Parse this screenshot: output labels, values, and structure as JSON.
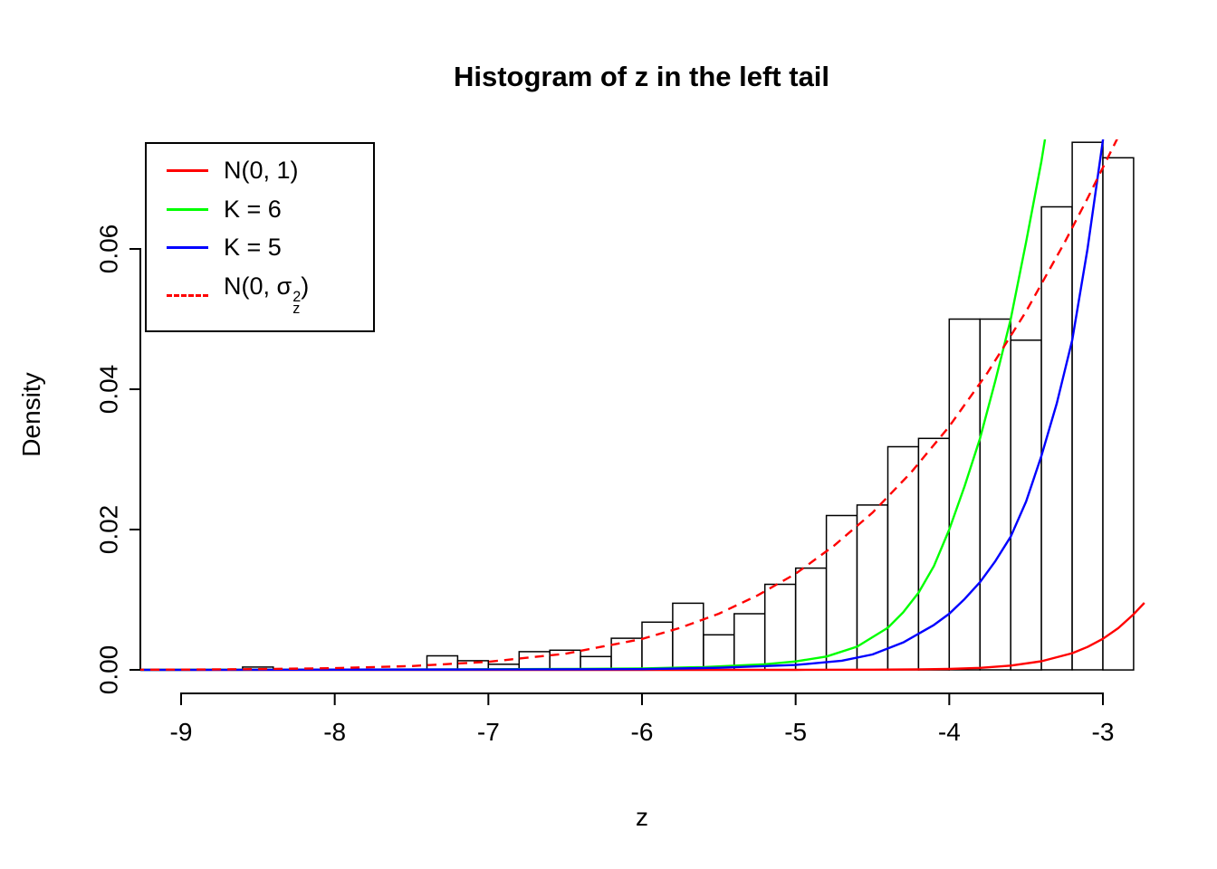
{
  "chart_data": {
    "type": "bar",
    "subtype": "histogram-with-density-curves",
    "title": "Histogram of z in the left tail",
    "xlabel": "z",
    "ylabel": "Density",
    "xlim": [
      -9.3,
      -2.73
    ],
    "ylim": [
      0,
      0.0755
    ],
    "grid": "off",
    "legend_position": "top-left",
    "x_ticks": [
      "-9",
      "-8",
      "-7",
      "-6",
      "-5",
      "-4",
      "-3"
    ],
    "x_tick_values": [
      -9,
      -8,
      -7,
      -6,
      -5,
      -4,
      -3
    ],
    "y_ticks": [
      "0.00",
      "0.02",
      "0.04",
      "0.06"
    ],
    "y_tick_values": [
      0,
      0.02,
      0.04,
      0.06
    ],
    "histogram": {
      "bin_start": -8.6,
      "bin_width": 0.2,
      "bar_fill": "#FFFFFF",
      "bar_stroke": "#000000",
      "densities": [
        0.0004,
        0,
        0,
        0,
        0,
        0,
        0.002,
        0.0013,
        0.0008,
        0.0026,
        0.0028,
        0.0019,
        0.0045,
        0.0068,
        0.0095,
        0.005,
        0.008,
        0.0122,
        0.0145,
        0.022,
        0.0235,
        0.0318,
        0.033,
        0.05,
        0.05,
        0.047,
        0.066,
        0.0752,
        0.073
      ]
    },
    "series": [
      {
        "id": "n01",
        "name": "N(0, 1)",
        "color": "#FF0000",
        "style": "solid",
        "points": [
          [
            -9.3,
            0
          ],
          [
            -5.0,
            0
          ],
          [
            -4.5,
            2e-05
          ],
          [
            -4.2,
            7e-05
          ],
          [
            -4.0,
            0.00013
          ],
          [
            -3.8,
            0.00029
          ],
          [
            -3.6,
            0.00061
          ],
          [
            -3.4,
            0.00123
          ],
          [
            -3.2,
            0.00238
          ],
          [
            -3.1,
            0.00327
          ],
          [
            -3.0,
            0.00443
          ],
          [
            -2.9,
            0.00595
          ],
          [
            -2.8,
            0.00792
          ],
          [
            -2.73,
            0.00955
          ]
        ]
      },
      {
        "id": "k6",
        "name": "K = 6",
        "color": "#00FF00",
        "style": "solid",
        "points": [
          [
            -9.3,
            0
          ],
          [
            -7.5,
            5e-05
          ],
          [
            -6.5,
            0.00013
          ],
          [
            -6.0,
            0.0002
          ],
          [
            -5.6,
            0.0004
          ],
          [
            -5.2,
            0.0008
          ],
          [
            -5.0,
            0.0012
          ],
          [
            -4.8,
            0.0019
          ],
          [
            -4.6,
            0.0033
          ],
          [
            -4.4,
            0.006
          ],
          [
            -4.3,
            0.0082
          ],
          [
            -4.2,
            0.011
          ],
          [
            -4.1,
            0.0148
          ],
          [
            -4.0,
            0.02
          ],
          [
            -3.9,
            0.0262
          ],
          [
            -3.8,
            0.033
          ],
          [
            -3.7,
            0.0412
          ],
          [
            -3.6,
            0.05
          ],
          [
            -3.5,
            0.061
          ],
          [
            -3.4,
            0.0725
          ],
          [
            -3.33,
            0.082
          ]
        ]
      },
      {
        "id": "k5",
        "name": "K = 5",
        "color": "#0000FF",
        "style": "solid",
        "points": [
          [
            -9.3,
            0
          ],
          [
            -7.0,
            5e-05
          ],
          [
            -6.0,
            0.0001
          ],
          [
            -5.5,
            0.0003
          ],
          [
            -5.0,
            0.0007
          ],
          [
            -4.7,
            0.0013
          ],
          [
            -4.5,
            0.0022
          ],
          [
            -4.3,
            0.0039
          ],
          [
            -4.1,
            0.0064
          ],
          [
            -4.0,
            0.008
          ],
          [
            -3.9,
            0.0101
          ],
          [
            -3.8,
            0.0125
          ],
          [
            -3.7,
            0.0155
          ],
          [
            -3.6,
            0.019
          ],
          [
            -3.5,
            0.024
          ],
          [
            -3.4,
            0.0305
          ],
          [
            -3.3,
            0.038
          ],
          [
            -3.2,
            0.047
          ],
          [
            -3.1,
            0.06
          ],
          [
            -3.0,
            0.0755
          ],
          [
            -2.96,
            0.083
          ]
        ]
      },
      {
        "id": "n0sigma",
        "name": "N(0, σz²)",
        "color": "#FF0000",
        "style": "dashed",
        "points": [
          [
            -9.3,
            2e-05
          ],
          [
            -9.0,
            4e-05
          ],
          [
            -8.5,
            0.0001
          ],
          [
            -8.0,
            0.00024
          ],
          [
            -7.5,
            0.00054
          ],
          [
            -7.0,
            0.00115
          ],
          [
            -6.5,
            0.0023
          ],
          [
            -6.0,
            0.0044
          ],
          [
            -5.75,
            0.006
          ],
          [
            -5.5,
            0.008
          ],
          [
            -5.25,
            0.0106
          ],
          [
            -5.0,
            0.0137
          ],
          [
            -4.75,
            0.0177
          ],
          [
            -4.5,
            0.0224
          ],
          [
            -4.25,
            0.0281
          ],
          [
            -4.0,
            0.0347
          ],
          [
            -3.75,
            0.0424
          ],
          [
            -3.5,
            0.0511
          ],
          [
            -3.25,
            0.0609
          ],
          [
            -3.1,
            0.0672
          ],
          [
            -3.0,
            0.0716
          ],
          [
            -2.9,
            0.076
          ],
          [
            -2.8,
            0.0807
          ]
        ]
      }
    ]
  },
  "legend": {
    "items": [
      {
        "label": "N(0, 1)",
        "color": "#FF0000",
        "dash": "solid"
      },
      {
        "label": "K = 6",
        "color": "#00FF00",
        "dash": "solid"
      },
      {
        "label": "K = 5",
        "color": "#0000FF",
        "dash": "solid"
      },
      {
        "label": "N(0, σz²)",
        "parts": {
          "prefix": "N(0, ",
          "sigma": "σ",
          "sup": "2",
          "sub": "z",
          "suffix": ")"
        },
        "color": "#FF0000",
        "dash": "dashed"
      }
    ]
  },
  "colors": {
    "axis": "#000000",
    "background": "#FFFFFF",
    "red": "#FF0000",
    "green": "#00FF00",
    "blue": "#0000FF"
  }
}
